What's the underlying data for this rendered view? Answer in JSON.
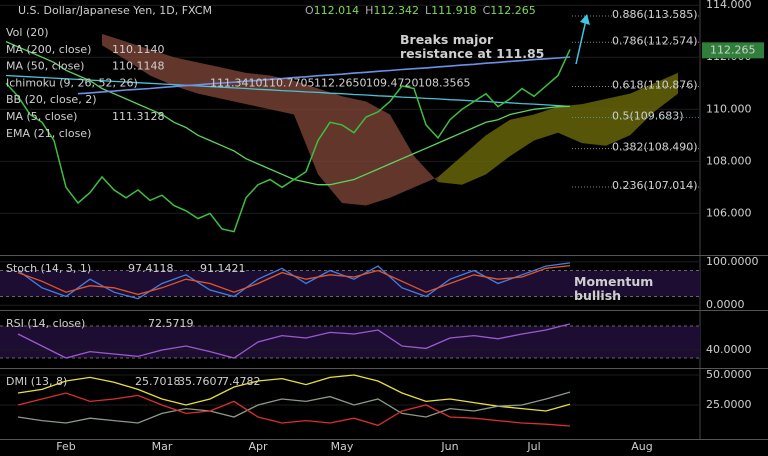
{
  "header": {
    "title": "U.S. Dollar/Japanese Yen, 1D, FXCM",
    "ohlc": [
      {
        "label": "O",
        "value": 112.014
      },
      {
        "label": "H",
        "value": 112.342
      },
      {
        "label": "L",
        "value": 111.918
      },
      {
        "label": "C",
        "value": 112.265
      }
    ]
  },
  "chart_data": [
    {
      "type": "line",
      "categories": [
        null,
        null,
        null,
        null,
        null,
        "Feb",
        null,
        null,
        null,
        null,
        null,
        null,
        null,
        "Mar",
        null,
        null,
        null,
        null,
        null,
        null,
        null,
        "Apr",
        null,
        null,
        null,
        null,
        null,
        null,
        "May",
        null,
        null,
        null,
        null,
        null,
        null,
        null,
        null,
        "Jun",
        null,
        null,
        null,
        null,
        null,
        null,
        "Jul",
        null,
        null,
        null,
        null,
        null,
        null,
        null,
        null,
        "Aug",
        null,
        null,
        null,
        null
      ],
      "ylim": [
        104.4,
        114.2
      ],
      "yticks": [
        {
          "value": 114,
          "label": "114.000"
        },
        {
          "value": 112,
          "label": "112.000"
        },
        {
          "value": 110,
          "label": "110.000"
        },
        {
          "value": 108,
          "label": "108.000"
        },
        {
          "value": 106,
          "label": "106.000"
        }
      ],
      "grid": true,
      "last_price": 112.265,
      "last_price_color": "#2f7f3a",
      "price": {
        "color": "#3fbf3f",
        "values": [
          111.0,
          110.5,
          109.8,
          109.5,
          108.8,
          107.0,
          106.4,
          106.8,
          107.4,
          106.9,
          106.6,
          106.9,
          106.5,
          106.7,
          106.3,
          106.1,
          105.8,
          106.0,
          105.4,
          105.3,
          106.6,
          107.1,
          107.3,
          107.0,
          107.3,
          107.6,
          108.8,
          109.5,
          109.4,
          109.1,
          109.7,
          109.9,
          110.3,
          110.9,
          110.8,
          109.4,
          108.9,
          109.6,
          110.0,
          110.3,
          110.6,
          110.1,
          110.4,
          110.8,
          110.5,
          110.9,
          111.3,
          112.3,
          null,
          null,
          null,
          null,
          null,
          null,
          null,
          null,
          null,
          null
        ]
      },
      "series": [
        {
          "name": "Vol (20)"
        },
        {
          "name": "MA (200, close)",
          "color": "#49c1d7",
          "readouts": [
            {
              "value": "110.1140",
              "color": "#49c1d7"
            }
          ],
          "values": [
            111.3,
            111.27,
            111.25,
            111.22,
            111.2,
            111.17,
            111.15,
            111.12,
            111.1,
            111.07,
            111.05,
            111.02,
            111.0,
            110.97,
            110.95,
            110.92,
            110.9,
            110.87,
            110.85,
            110.82,
            110.8,
            110.77,
            110.75,
            110.72,
            110.7,
            110.67,
            110.65,
            110.62,
            110.6,
            110.57,
            110.55,
            110.52,
            110.5,
            110.47,
            110.45,
            110.42,
            110.4,
            110.37,
            110.35,
            110.32,
            110.3,
            110.27,
            110.25,
            110.22,
            110.2,
            110.17,
            110.14,
            110.11,
            null,
            null,
            null,
            null,
            null,
            null,
            null,
            null,
            null,
            null
          ]
        },
        {
          "name": "MA (50, close)",
          "color": "#5fd35f",
          "readouts": [
            {
              "value": "110.1148",
              "color": "#b8e04a"
            }
          ],
          "values": [
            112.6,
            112.4,
            112.2,
            112.0,
            111.8,
            111.5,
            111.3,
            111.1,
            110.8,
            110.6,
            110.4,
            110.2,
            110.0,
            109.8,
            109.5,
            109.3,
            109.0,
            108.8,
            108.6,
            108.4,
            108.1,
            107.9,
            107.7,
            107.5,
            107.3,
            107.2,
            107.1,
            107.1,
            107.2,
            107.3,
            107.5,
            107.7,
            107.9,
            108.1,
            108.3,
            108.5,
            108.7,
            108.9,
            109.1,
            109.3,
            109.5,
            109.6,
            109.8,
            109.9,
            110.0,
            110.05,
            110.1,
            110.11,
            null,
            null,
            null,
            null,
            null,
            null,
            null,
            null,
            null,
            null
          ]
        },
        {
          "name": "Ichimoku (9, 26, 52, 26)",
          "readouts": [
            {
              "value": "111.3410",
              "color": "#3f7fe0"
            },
            {
              "value": "110.7705",
              "color": "#e04040"
            },
            {
              "value": "112.2650",
              "color": "#dddddd"
            },
            {
              "value": "109.4720",
              "color": "#7ecf3a"
            },
            {
              "value": "108.3565",
              "color": "#e04040"
            }
          ]
        },
        {
          "name": "BB (20, close, 2)"
        },
        {
          "name": "MA (5, close)",
          "readouts": [
            {
              "value": "111.3128",
              "color": "#e8d23a"
            }
          ]
        },
        {
          "name": "EMA (21, close)"
        }
      ],
      "cloud": {
        "bull_color": "#6b6a0a",
        "bear_color": "#7a4436",
        "span_a": [
          null,
          null,
          null,
          null,
          112.46,
          111.9,
          111.3,
          110.9,
          110.6,
          110.4,
          110.2,
          110.0,
          109.8,
          107.5,
          106.4,
          106.3,
          106.6,
          107.0,
          107.4,
          108.2,
          109.0,
          109.6,
          109.8,
          110.1,
          110.2,
          110.4,
          110.6,
          111.0,
          111.4
        ],
        "span_b": [
          null,
          null,
          null,
          null,
          112.9,
          112.6,
          112.3,
          112.0,
          111.8,
          111.6,
          111.4,
          111.3,
          111.1,
          110.8,
          110.5,
          110.3,
          109.8,
          108.2,
          107.2,
          107.1,
          107.5,
          108.2,
          108.8,
          109.1,
          108.7,
          108.6,
          109.0,
          109.9,
          110.6
        ]
      },
      "trendline": {
        "color": "#6d8fe8",
        "values": [
          null,
          null,
          null,
          null,
          null,
          null,
          110.6,
          110.63,
          110.67,
          110.7,
          110.74,
          110.77,
          110.8,
          110.84,
          110.87,
          110.91,
          110.94,
          110.98,
          111.01,
          111.04,
          111.08,
          111.11,
          111.15,
          111.18,
          111.22,
          111.25,
          111.29,
          111.32,
          111.35,
          111.39,
          111.42,
          111.46,
          111.49,
          111.53,
          111.56,
          111.59,
          111.63,
          111.66,
          111.7,
          111.73,
          111.77,
          111.8,
          111.84,
          111.87,
          111.91,
          111.94,
          111.97,
          112.01,
          null,
          null,
          null,
          null,
          null,
          null,
          null,
          null,
          null,
          null
        ]
      },
      "fib": [
        {
          "label": "0.886(113.585)",
          "value": 113.585,
          "color": "#dddddd"
        },
        {
          "label": "0.786(112.574)",
          "value": 112.574,
          "color": "#dddddd"
        },
        {
          "label": "0.618(110.876)",
          "value": 110.876,
          "color": "#dddddd"
        },
        {
          "label": "0.5(109.683)",
          "value": 109.683,
          "color": "#3fc6e0"
        },
        {
          "label": "0.382(108.490)",
          "value": 108.49,
          "color": "#dddddd"
        },
        {
          "label": "0.236(107.014)",
          "value": 107.014,
          "color": "#dddddd"
        }
      ],
      "annotation": [
        "Breaks major",
        "resistance at 111.85"
      ]
    },
    {
      "type": "line",
      "title": "Stoch (14, 3, 1)",
      "ylim": [
        -11,
        111
      ],
      "yticks": [
        {
          "value": 100,
          "label": "100.0000"
        },
        {
          "value": 0,
          "label": "0.0000"
        }
      ],
      "band": [
        20,
        80
      ],
      "series": [
        {
          "color": "#3f7fe0",
          "readout": "97.4118",
          "values": [
            80,
            40,
            20,
            60,
            30,
            15,
            50,
            70,
            35,
            20,
            60,
            85,
            50,
            80,
            60,
            90,
            40,
            20,
            60,
            80,
            50,
            70,
            90,
            97.4
          ]
        },
        {
          "color": "#e0562a",
          "readout": "91.1421",
          "values": [
            75,
            55,
            30,
            45,
            40,
            25,
            40,
            60,
            50,
            30,
            50,
            75,
            60,
            70,
            65,
            80,
            55,
            30,
            50,
            70,
            60,
            65,
            85,
            91.1
          ]
        }
      ],
      "annotation": [
        "Momentum",
        "bullish"
      ]
    },
    {
      "type": "line",
      "title": "RSI (14, close)",
      "ylim": [
        17.5,
        87.5
      ],
      "yticks": [
        {
          "value": 40,
          "label": "40.0000"
        }
      ],
      "band": [
        30,
        70
      ],
      "series": [
        {
          "color": "#9b59d0",
          "readout": "72.5719",
          "values": [
            60,
            45,
            30,
            38,
            35,
            32,
            40,
            45,
            38,
            30,
            50,
            58,
            55,
            62,
            60,
            65,
            45,
            42,
            55,
            58,
            54,
            60,
            65,
            72.6
          ]
        }
      ]
    },
    {
      "type": "line",
      "title": "DMI (13, 8)",
      "ylim": [
        -2.5,
        54.2
      ],
      "yticks": [
        {
          "value": 50,
          "label": "50.0000"
        },
        {
          "value": 25,
          "label": "25.0000"
        }
      ],
      "series": [
        {
          "color": "#e8e03a",
          "readout": "25.7018",
          "values": [
            35,
            38,
            45,
            48,
            44,
            38,
            30,
            25,
            30,
            40,
            45,
            47,
            42,
            48,
            50,
            45,
            35,
            28,
            30,
            27,
            24,
            22,
            20,
            25.7
          ]
        },
        {
          "color": "#8a9a8a",
          "readout": "35.7607",
          "values": [
            15,
            12,
            10,
            14,
            12,
            10,
            18,
            22,
            20,
            15,
            25,
            30,
            28,
            32,
            25,
            30,
            18,
            15,
            22,
            20,
            24,
            25,
            30,
            35.8
          ]
        },
        {
          "color": "#d83030",
          "readout": "7.4782",
          "values": [
            25,
            30,
            35,
            28,
            30,
            33,
            25,
            18,
            20,
            28,
            15,
            10,
            12,
            10,
            14,
            8,
            20,
            25,
            15,
            14,
            12,
            10,
            9,
            7.5
          ]
        }
      ]
    }
  ]
}
